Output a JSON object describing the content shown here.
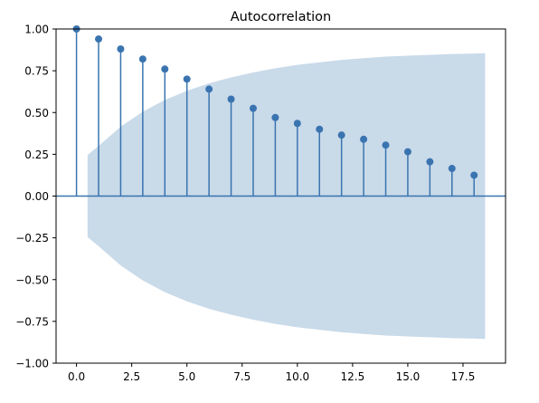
{
  "chart_data": {
    "type": "stem",
    "title": "Autocorrelation",
    "xlabel": "",
    "ylabel": "",
    "xlim": [
      -0.925,
      19.425
    ],
    "ylim": [
      -1.0,
      1.0
    ],
    "x_ticks": [
      0,
      2.5,
      5,
      7.5,
      10,
      12.5,
      15,
      17.5
    ],
    "x_tick_labels": [
      "0.0",
      "2.5",
      "5.0",
      "7.5",
      "10.0",
      "12.5",
      "15.0",
      "17.5"
    ],
    "y_ticks": [
      -1,
      -0.75,
      -0.5,
      -0.25,
      0,
      0.25,
      0.5,
      0.75,
      1
    ],
    "y_tick_labels": [
      "−1.00",
      "−0.75",
      "−0.50",
      "−0.25",
      "0.00",
      "0.25",
      "0.50",
      "0.75",
      "1.00"
    ],
    "grid": false,
    "lags": [
      0,
      1,
      2,
      3,
      4,
      5,
      6,
      7,
      8,
      9,
      10,
      11,
      12,
      13,
      14,
      15,
      16,
      17,
      18
    ],
    "acf": [
      1.0,
      0.94,
      0.88,
      0.82,
      0.76,
      0.7,
      0.64,
      0.58,
      0.525,
      0.47,
      0.435,
      0.4,
      0.365,
      0.34,
      0.305,
      0.265,
      0.205,
      0.165,
      0.125
    ],
    "confidence_band": {
      "x": [
        0.5,
        1,
        2,
        3,
        4,
        5,
        6,
        7,
        8,
        9,
        10,
        11,
        12,
        13,
        14,
        15,
        16,
        17,
        18,
        18.5
      ],
      "upper": [
        0.245,
        0.3,
        0.415,
        0.505,
        0.575,
        0.63,
        0.675,
        0.71,
        0.74,
        0.765,
        0.785,
        0.8,
        0.815,
        0.825,
        0.835,
        0.84,
        0.845,
        0.85,
        0.853,
        0.855
      ]
    },
    "colors": {
      "stem": "#3a74b0",
      "band": "#c9dae9",
      "zero_line": "#3a74b0"
    }
  }
}
